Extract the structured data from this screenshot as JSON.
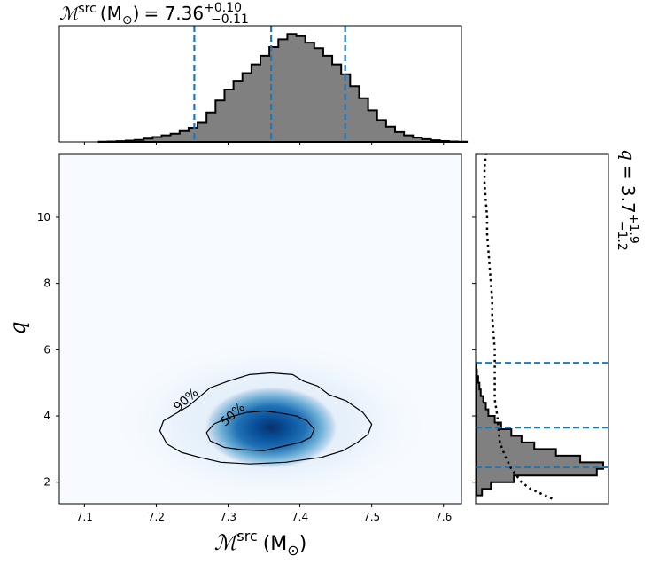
{
  "chart_data": [
    {
      "panel": "top-marginal",
      "type": "bar",
      "title_prefix": "= 7.36",
      "title_sup": "+0.10",
      "title_sub": "−0.11",
      "x_param_symbol": "ℳ",
      "x_param_sup": "src",
      "x_param_unit": "(M",
      "x_param_unit_sub": "⊙",
      "x_param_unit_close": ")",
      "xlim": [
        7.065,
        7.625
      ],
      "bin_edges_start": 7.12,
      "bin_width": 0.0125,
      "values": [
        0.002,
        0.004,
        0.007,
        0.012,
        0.018,
        0.03,
        0.045,
        0.06,
        0.075,
        0.1,
        0.13,
        0.175,
        0.27,
        0.38,
        0.48,
        0.56,
        0.63,
        0.71,
        0.79,
        0.87,
        0.94,
        0.99,
        0.97,
        0.91,
        0.86,
        0.79,
        0.71,
        0.62,
        0.51,
        0.4,
        0.29,
        0.2,
        0.14,
        0.09,
        0.06,
        0.04,
        0.025,
        0.015,
        0.008,
        0.004,
        0.002
      ],
      "quantile_lines": [
        7.253,
        7.36,
        7.463
      ],
      "fill_color": "#808080",
      "line_color": "#1f77b4"
    },
    {
      "panel": "joint",
      "type": "heatmap",
      "xlabel_symbol": "ℳ",
      "xlabel_sup": "src",
      "xlabel_unit": "(M",
      "xlabel_unit_sub": "⊙",
      "xlabel_unit_close": ")",
      "ylabel": "q",
      "xlim": [
        7.065,
        7.625
      ],
      "ylim": [
        1.35,
        11.9
      ],
      "xticks": [
        "7.1",
        "7.2",
        "7.3",
        "7.4",
        "7.5",
        "7.6"
      ],
      "yticks": [
        "2",
        "4",
        "6",
        "8",
        "10"
      ],
      "peak": [
        7.36,
        3.65
      ],
      "colormap": "Blues",
      "contours": [
        {
          "label": "90%",
          "label_at": [
            7.245,
            4.4
          ],
          "points": [
            [
              7.245,
              4.3
            ],
            [
              7.275,
              4.85
            ],
            [
              7.3,
              5.05
            ],
            [
              7.33,
              5.25
            ],
            [
              7.36,
              5.3
            ],
            [
              7.39,
              5.25
            ],
            [
              7.405,
              5.05
            ],
            [
              7.425,
              4.9
            ],
            [
              7.44,
              4.65
            ],
            [
              7.465,
              4.45
            ],
            [
              7.488,
              4.1
            ],
            [
              7.5,
              3.75
            ],
            [
              7.495,
              3.45
            ],
            [
              7.48,
              3.2
            ],
            [
              7.46,
              2.95
            ],
            [
              7.43,
              2.75
            ],
            [
              7.38,
              2.6
            ],
            [
              7.33,
              2.55
            ],
            [
              7.29,
              2.6
            ],
            [
              7.26,
              2.75
            ],
            [
              7.235,
              2.9
            ],
            [
              7.215,
              3.15
            ],
            [
              7.205,
              3.55
            ],
            [
              7.21,
              3.85
            ]
          ]
        },
        {
          "label": "50%",
          "label_at": [
            7.31,
            3.95
          ],
          "points": [
            [
              7.3,
              3.95
            ],
            [
              7.325,
              4.1
            ],
            [
              7.35,
              4.15
            ],
            [
              7.375,
              4.08
            ],
            [
              7.395,
              4.0
            ],
            [
              7.41,
              3.85
            ],
            [
              7.42,
              3.6
            ],
            [
              7.415,
              3.35
            ],
            [
              7.4,
              3.2
            ],
            [
              7.38,
              3.1
            ],
            [
              7.35,
              2.95
            ],
            [
              7.32,
              2.98
            ],
            [
              7.295,
              3.05
            ],
            [
              7.275,
              3.25
            ],
            [
              7.27,
              3.5
            ],
            [
              7.28,
              3.75
            ]
          ]
        }
      ]
    },
    {
      "panel": "right-marginal",
      "type": "bar",
      "orientation": "horizontal",
      "title_symbol": "q",
      "title_value": "= 3.7",
      "title_sup": "+1.9",
      "title_sub": "−1.2",
      "ylim": [
        1.35,
        11.9
      ],
      "bin_edges_start": 1.6,
      "bin_width": 0.2,
      "values": [
        0.05,
        0.12,
        0.3,
        0.95,
        1.0,
        0.82,
        0.63,
        0.46,
        0.36,
        0.28,
        0.2,
        0.15,
        0.1,
        0.08,
        0.06,
        0.04,
        0.03,
        0.02,
        0.01,
        0.005
      ],
      "quantile_lines": [
        2.45,
        3.65,
        5.6
      ],
      "prior_curve": [
        [
          1.5,
          0.6
        ],
        [
          1.8,
          0.43
        ],
        [
          2.0,
          0.36
        ],
        [
          2.4,
          0.28
        ],
        [
          2.8,
          0.23
        ],
        [
          3.2,
          0.19
        ],
        [
          3.6,
          0.18
        ],
        [
          4.0,
          0.17
        ],
        [
          4.5,
          0.15
        ],
        [
          5.0,
          0.15
        ],
        [
          5.5,
          0.15
        ],
        [
          6.0,
          0.15
        ],
        [
          6.5,
          0.14
        ],
        [
          7.0,
          0.13
        ],
        [
          7.5,
          0.13
        ],
        [
          8.0,
          0.12
        ],
        [
          8.5,
          0.11
        ],
        [
          9.0,
          0.1
        ],
        [
          9.5,
          0.09
        ],
        [
          10.0,
          0.09
        ],
        [
          10.5,
          0.08
        ],
        [
          11.0,
          0.07
        ],
        [
          11.5,
          0.07
        ],
        [
          11.9,
          0.08
        ]
      ],
      "fill_color": "#808080",
      "line_color": "#1f77b4"
    }
  ]
}
